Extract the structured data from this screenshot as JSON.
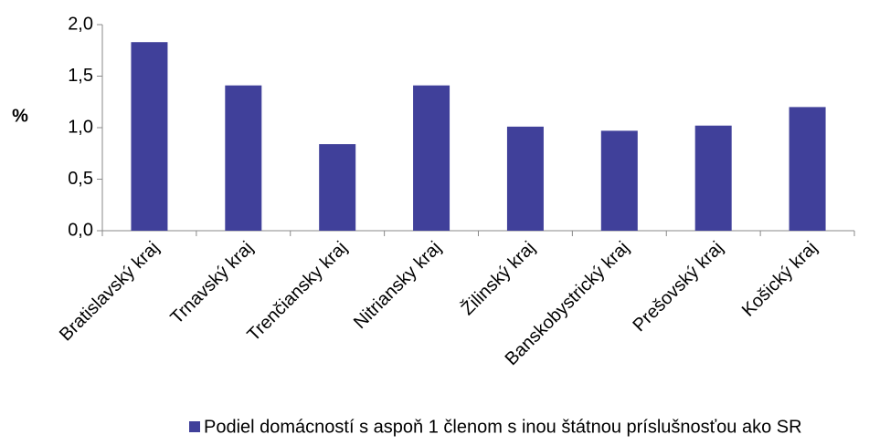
{
  "chart_data": {
    "type": "bar",
    "y_label": "%",
    "categories": [
      "Bratislavský kraj",
      "Trnavský kraj",
      "Trenčiansky kraj",
      "Nitriansky kraj",
      "Žilinský kraj",
      "Banskobystrický kraj",
      "Prešovský kraj",
      "Košický kraj"
    ],
    "series": [
      {
        "name": "Podiel domácností s aspoň 1 členom s inou štátnou príslušnosťou ako SR",
        "color": "#40409a",
        "values": [
          1.83,
          1.41,
          0.84,
          1.41,
          1.01,
          0.97,
          1.02,
          1.2
        ]
      }
    ],
    "ylim": [
      0,
      2
    ],
    "yticks": [
      {
        "value": 0,
        "label": "0,0"
      },
      {
        "value": 0.5,
        "label": "0,5"
      },
      {
        "value": 1,
        "label": "1,0"
      },
      {
        "value": 1.5,
        "label": "1,5"
      },
      {
        "value": 2,
        "label": "2,0"
      }
    ],
    "grid": false,
    "legend": "bottom"
  }
}
